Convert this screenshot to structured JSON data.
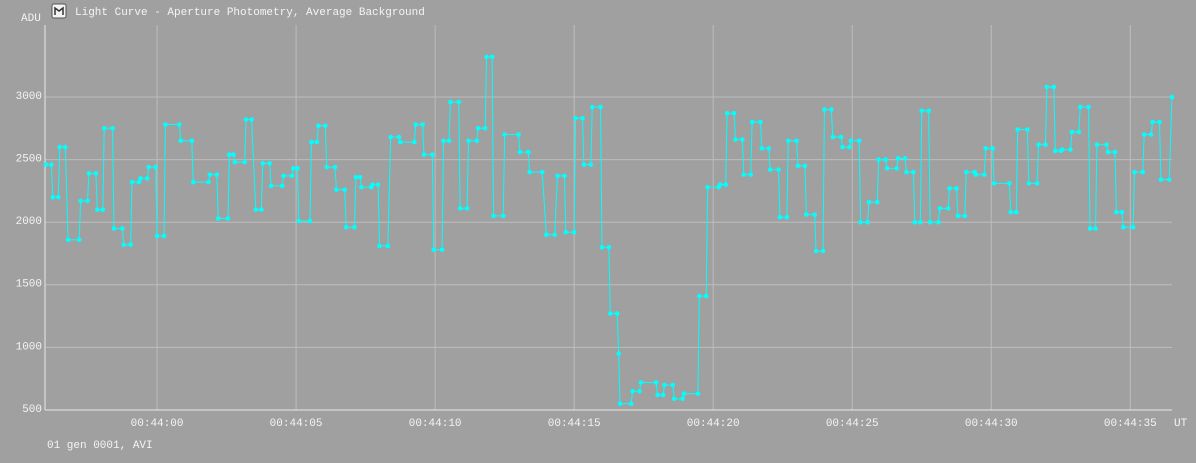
{
  "chart_data": {
    "type": "line",
    "title": "Light Curve - Aperture Photometry, Average Background",
    "y_label": "ADU",
    "x_label": "UT",
    "footer": "01 gen 0001, AVI",
    "color": "#00ffff",
    "grid": true,
    "xlim": [
      2635.97,
      2676.5
    ],
    "ylim": [
      500,
      3575
    ],
    "yticks": [
      500,
      1000,
      1500,
      2000,
      2500,
      3000
    ],
    "xticks": [
      {
        "value": 2640,
        "label": "00:44:00"
      },
      {
        "value": 2645,
        "label": "00:44:05"
      },
      {
        "value": 2650,
        "label": "00:44:10"
      },
      {
        "value": 2655,
        "label": "00:44:15"
      },
      {
        "value": 2660,
        "label": "00:44:20"
      },
      {
        "value": 2665,
        "label": "00:44:25"
      },
      {
        "value": 2670,
        "label": "00:44:30"
      },
      {
        "value": 2675,
        "label": "00:44:35"
      }
    ],
    "x": [
      2636.0,
      2636.2,
      2636.25,
      2636.45,
      2636.5,
      2636.7,
      2636.8,
      2637.2,
      2637.25,
      2637.5,
      2637.55,
      2637.8,
      2637.85,
      2638.05,
      2638.1,
      2638.4,
      2638.45,
      2638.75,
      2638.8,
      2639.05,
      2639.1,
      2639.35,
      2639.4,
      2639.65,
      2639.7,
      2639.95,
      2640.0,
      2640.25,
      2640.3,
      2640.8,
      2640.85,
      2641.25,
      2641.3,
      2641.85,
      2641.9,
      2642.15,
      2642.2,
      2642.55,
      2642.6,
      2642.75,
      2642.8,
      2643.15,
      2643.2,
      2643.4,
      2643.55,
      2643.75,
      2643.8,
      2644.05,
      2644.1,
      2644.5,
      2644.55,
      2644.85,
      2644.9,
      2645.05,
      2645.1,
      2645.5,
      2645.55,
      2645.75,
      2645.8,
      2646.05,
      2646.1,
      2646.4,
      2646.45,
      2646.75,
      2646.8,
      2647.1,
      2647.15,
      2647.3,
      2647.35,
      2647.7,
      2647.75,
      2647.95,
      2648.0,
      2648.3,
      2648.4,
      2648.7,
      2648.75,
      2649.25,
      2649.3,
      2649.55,
      2649.6,
      2649.9,
      2649.95,
      2650.25,
      2650.3,
      2650.5,
      2650.55,
      2650.85,
      2650.9,
      2651.15,
      2651.2,
      2651.5,
      2651.55,
      2651.8,
      2651.85,
      2652.05,
      2652.1,
      2652.45,
      2652.5,
      2653.0,
      2653.05,
      2653.35,
      2653.4,
      2653.85,
      2654.0,
      2654.3,
      2654.4,
      2654.65,
      2654.7,
      2655.0,
      2655.05,
      2655.3,
      2655.35,
      2655.6,
      2655.65,
      2655.95,
      2656.0,
      2656.25,
      2656.3,
      2656.55,
      2656.6,
      2656.65,
      2657.05,
      2657.1,
      2657.35,
      2657.4,
      2657.95,
      2658.0,
      2658.2,
      2658.25,
      2658.55,
      2658.6,
      2658.9,
      2658.95,
      2659.45,
      2659.5,
      2659.75,
      2659.8,
      2660.2,
      2660.25,
      2660.45,
      2660.5,
      2660.75,
      2660.8,
      2661.05,
      2661.1,
      2661.35,
      2661.4,
      2661.7,
      2661.75,
      2662.0,
      2662.05,
      2662.35,
      2662.4,
      2662.65,
      2662.7,
      2663.0,
      2663.05,
      2663.3,
      2663.35,
      2663.65,
      2663.7,
      2663.95,
      2664.0,
      2664.25,
      2664.3,
      2664.6,
      2664.65,
      2664.9,
      2664.95,
      2665.25,
      2665.3,
      2665.55,
      2665.6,
      2665.9,
      2665.95,
      2666.2,
      2666.25,
      2666.6,
      2666.65,
      2666.9,
      2666.95,
      2667.2,
      2667.25,
      2667.45,
      2667.5,
      2667.75,
      2667.8,
      2668.1,
      2668.15,
      2668.45,
      2668.5,
      2668.75,
      2668.8,
      2669.05,
      2669.1,
      2669.4,
      2669.45,
      2669.75,
      2669.8,
      2670.05,
      2670.1,
      2670.65,
      2670.7,
      2670.9,
      2670.95,
      2671.3,
      2671.35,
      2671.65,
      2671.7,
      2671.95,
      2672.0,
      2672.25,
      2672.3,
      2672.5,
      2672.55,
      2672.85,
      2672.9,
      2673.15,
      2673.2,
      2673.5,
      2673.55,
      2673.75,
      2673.8,
      2674.15,
      2674.2,
      2674.45,
      2674.5,
      2674.7,
      2674.75,
      2675.1,
      2675.15,
      2675.45,
      2675.5,
      2675.75,
      2675.8,
      2676.05,
      2676.1,
      2676.4,
      2676.5
    ],
    "values": [
      2460,
      2460,
      2200,
      2200,
      2600,
      2600,
      1860,
      1860,
      2170,
      2170,
      2390,
      2390,
      2100,
      2100,
      2750,
      2750,
      1950,
      1950,
      1820,
      1820,
      2320,
      2320,
      2350,
      2350,
      2440,
      2440,
      1890,
      1890,
      2780,
      2780,
      2650,
      2650,
      2320,
      2320,
      2380,
      2380,
      2030,
      2030,
      2540,
      2540,
      2480,
      2480,
      2820,
      2820,
      2100,
      2100,
      2470,
      2470,
      2290,
      2290,
      2370,
      2370,
      2430,
      2430,
      2010,
      2010,
      2640,
      2640,
      2770,
      2770,
      2440,
      2440,
      2260,
      2260,
      1960,
      1960,
      2360,
      2360,
      2280,
      2280,
      2300,
      2300,
      1810,
      1810,
      2680,
      2680,
      2640,
      2640,
      2780,
      2780,
      2540,
      2540,
      1780,
      1780,
      2650,
      2650,
      2960,
      2960,
      2110,
      2110,
      2650,
      2650,
      2750,
      2750,
      3320,
      3320,
      2050,
      2050,
      2700,
      2700,
      2560,
      2560,
      2400,
      2400,
      1900,
      1900,
      2370,
      2370,
      1920,
      1920,
      2830,
      2830,
      2460,
      2460,
      2920,
      2920,
      1800,
      1800,
      1270,
      1270,
      950,
      550,
      550,
      650,
      650,
      720,
      720,
      620,
      620,
      700,
      700,
      590,
      590,
      630,
      630,
      1410,
      1410,
      2280,
      2280,
      2300,
      2300,
      2870,
      2870,
      2660,
      2660,
      2380,
      2380,
      2800,
      2800,
      2590,
      2590,
      2420,
      2420,
      2040,
      2040,
      2650,
      2650,
      2450,
      2450,
      2060,
      2060,
      1770,
      1770,
      2900,
      2900,
      2680,
      2680,
      2600,
      2600,
      2650,
      2650,
      2000,
      2000,
      2160,
      2160,
      2500,
      2500,
      2430,
      2430,
      2510,
      2510,
      2400,
      2400,
      2000,
      2000,
      2890,
      2890,
      2000,
      2000,
      2110,
      2110,
      2270,
      2270,
      2050,
      2050,
      2400,
      2400,
      2380,
      2380,
      2590,
      2590,
      2310,
      2310,
      2080,
      2080,
      2740,
      2740,
      2310,
      2310,
      2620,
      2620,
      3080,
      3080,
      2570,
      2570,
      2580,
      2580,
      2720,
      2720,
      2920,
      2920,
      1950,
      1950,
      2620,
      2620,
      2560,
      2560,
      2080,
      2080,
      1960,
      1960,
      2400,
      2400,
      2700,
      2700,
      2800,
      2800,
      2340,
      2340,
      3000
    ]
  }
}
